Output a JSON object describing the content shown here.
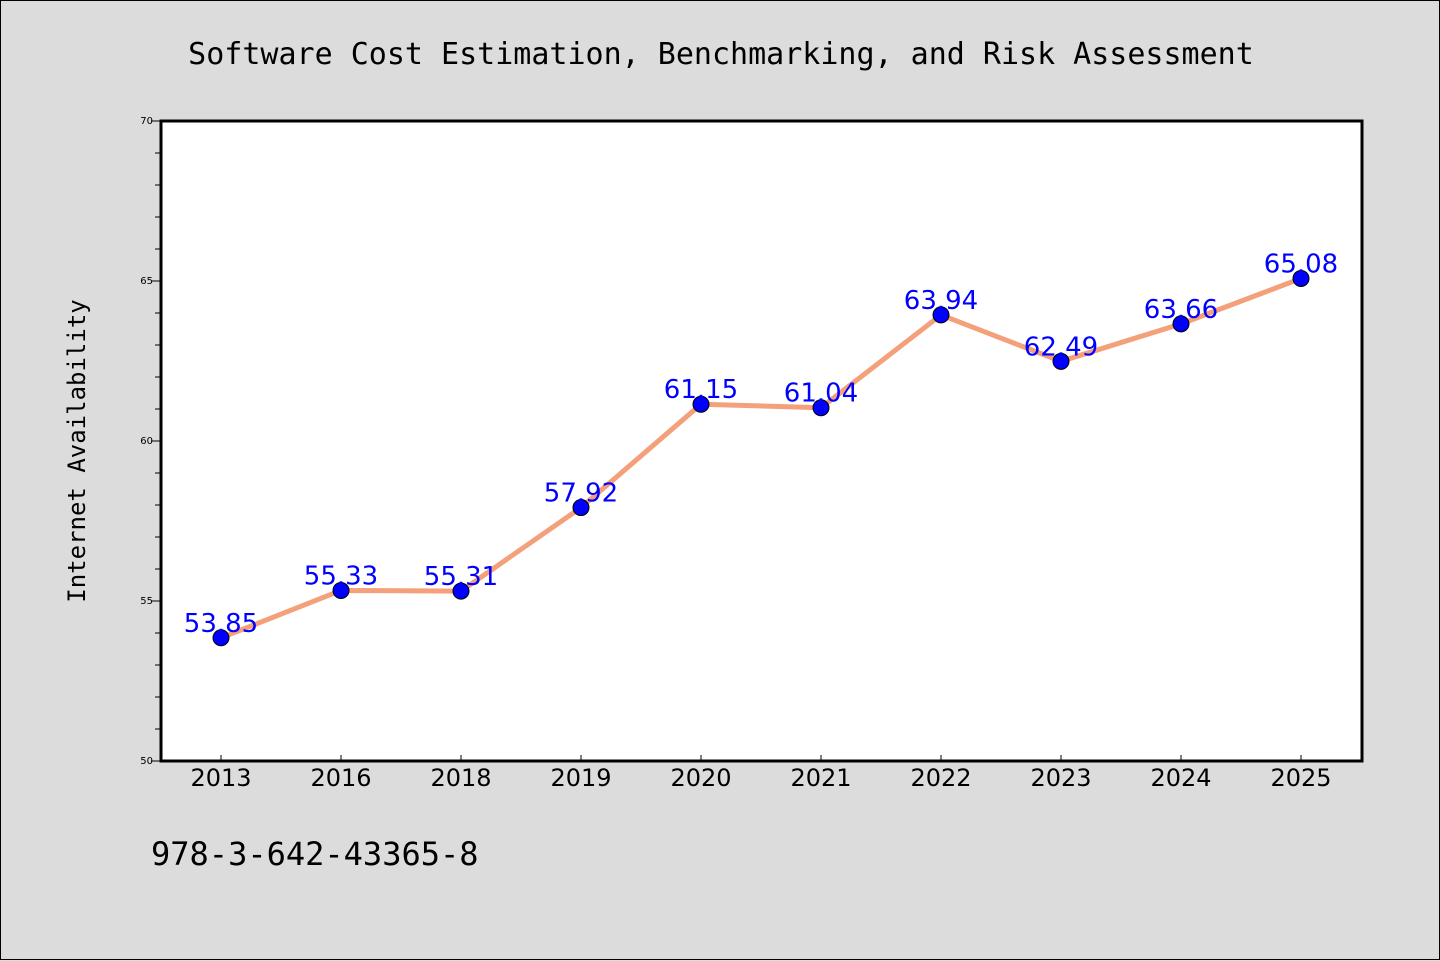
{
  "footer": {
    "isbn": "978-3-642-43365-8"
  },
  "colors": {
    "line": "#f4a07a",
    "marker": "#0000ff",
    "label": "#0000ff",
    "plot_bg": "#ffffff",
    "page_bg": "#dcdcdc"
  },
  "chart_data": {
    "type": "line",
    "title": "Software Cost Estimation, Benchmarking, and Risk Assessment",
    "xlabel": "",
    "ylabel": "Internet Availability",
    "categories": [
      "2013",
      "2016",
      "2018",
      "2019",
      "2020",
      "2021",
      "2022",
      "2023",
      "2024",
      "2025"
    ],
    "series": [
      {
        "values": [
          53.85,
          55.33,
          55.31,
          57.92,
          61.15,
          61.04,
          63.94,
          62.49,
          63.66,
          65.08
        ]
      }
    ],
    "data_labels": [
      "53.85",
      "55.33",
      "55.31",
      "57.92",
      "61.15",
      "61.04",
      "63.94",
      "62.49",
      "63.66",
      "65.08"
    ],
    "ylim": [
      50,
      70
    ],
    "yticks": [
      50,
      55,
      60,
      65,
      70
    ],
    "grid": false,
    "legend": "none"
  }
}
